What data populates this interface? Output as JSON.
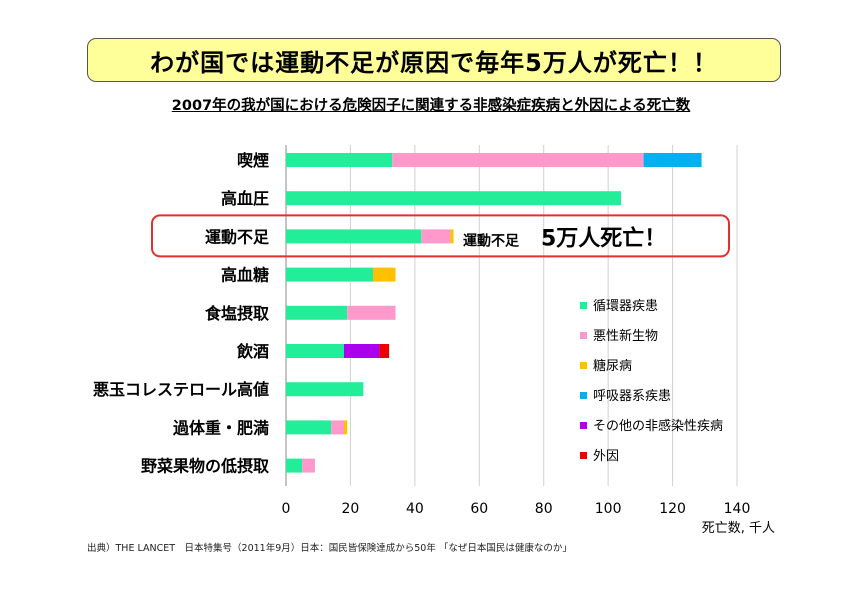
{
  "banner": {
    "text": "わが国では運動不足が原因で毎年5万人が死亡！！"
  },
  "chart_data": {
    "type": "bar",
    "orientation": "horizontal",
    "stacked": true,
    "title": "2007年の我が国における危険因子に関連する非感染症疾病と外因による死亡数",
    "xlabel": "死亡数, 千人",
    "xlim": [
      0,
      140
    ],
    "xticks": [
      0,
      20,
      40,
      60,
      80,
      100,
      120,
      140
    ],
    "grid": true,
    "legend_position": "right",
    "categories": [
      "喫煙",
      "高血圧",
      "運動不足",
      "高血糖",
      "食塩摂取",
      "飲酒",
      "悪玉コレステロール高値",
      "過体重・肥満",
      "野菜果物の低摂取"
    ],
    "series": [
      {
        "name": "循環器疾患",
        "color": "#22ee99",
        "values": [
          33,
          104,
          42,
          27,
          19,
          18,
          24,
          14,
          5
        ]
      },
      {
        "name": "悪性新生物",
        "color": "#ff99cc",
        "values": [
          78,
          0,
          9,
          0,
          15,
          0,
          0,
          4,
          4
        ]
      },
      {
        "name": "糖尿病",
        "color": "#ffc000",
        "values": [
          0,
          0,
          1,
          7,
          0,
          0,
          0,
          1,
          0
        ]
      },
      {
        "name": "呼吸器系疾患",
        "color": "#00b0f0",
        "values": [
          18,
          0,
          0,
          0,
          0,
          0,
          0,
          0,
          0
        ]
      },
      {
        "name": "その他の非感染性疾病",
        "color": "#aa00ee",
        "values": [
          0,
          0,
          0,
          0,
          0,
          11,
          0,
          0,
          0
        ]
      },
      {
        "name": "外因",
        "color": "#ee0000",
        "values": [
          0,
          0,
          0,
          0,
          0,
          3,
          0,
          0,
          0
        ]
      }
    ],
    "highlight": {
      "category": "運動不足",
      "annotation_small": "運動不足",
      "annotation_big": "5万人死亡！",
      "color": "#e03030"
    }
  },
  "source": "出典）THE LANCET　日本特集号（2011年9月）日本：国民皆保険達成から50年 「なぜ日本国民は健康なのか」"
}
